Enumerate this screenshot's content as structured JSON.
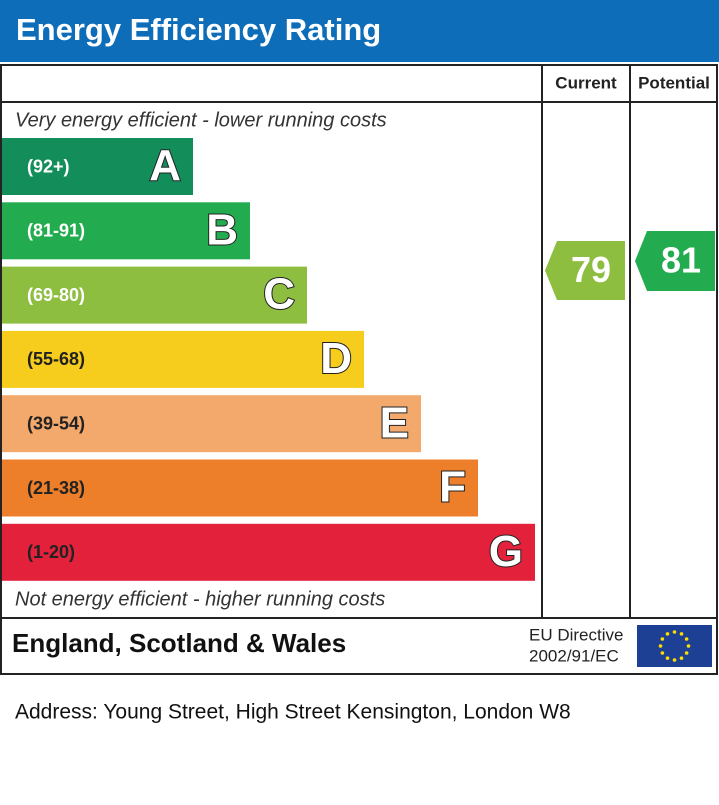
{
  "header": {
    "title": "Energy Efficiency Rating"
  },
  "columns": {
    "current": "Current",
    "potential": "Potential"
  },
  "top_note": "Very energy efficient - lower running costs",
  "bands": [
    {
      "range": "(92+)",
      "letter": "A",
      "color": "#138d5a"
    },
    {
      "range": "(81-91)",
      "letter": "B",
      "color": "#23ac4f"
    },
    {
      "range": "(69-80)",
      "letter": "C",
      "color": "#8dbe3f"
    },
    {
      "range": "(55-68)",
      "letter": "D",
      "color": "#f6cd1d"
    },
    {
      "range": "(39-54)",
      "letter": "E",
      "color": "#f3a96c"
    },
    {
      "range": "(21-38)",
      "letter": "F",
      "color": "#ee7f2a"
    },
    {
      "range": "(1-20)",
      "letter": "G",
      "color": "#e3213b"
    }
  ],
  "current": 79,
  "potential": 81,
  "bottom_note": "Not energy efficient - higher running costs",
  "footer": {
    "region": "England, Scotland & Wales",
    "directive_line1": "EU Directive",
    "directive_line2": "2002/91/EC"
  },
  "address": "Address: Young Street, High Street Kensington, London W8"
}
